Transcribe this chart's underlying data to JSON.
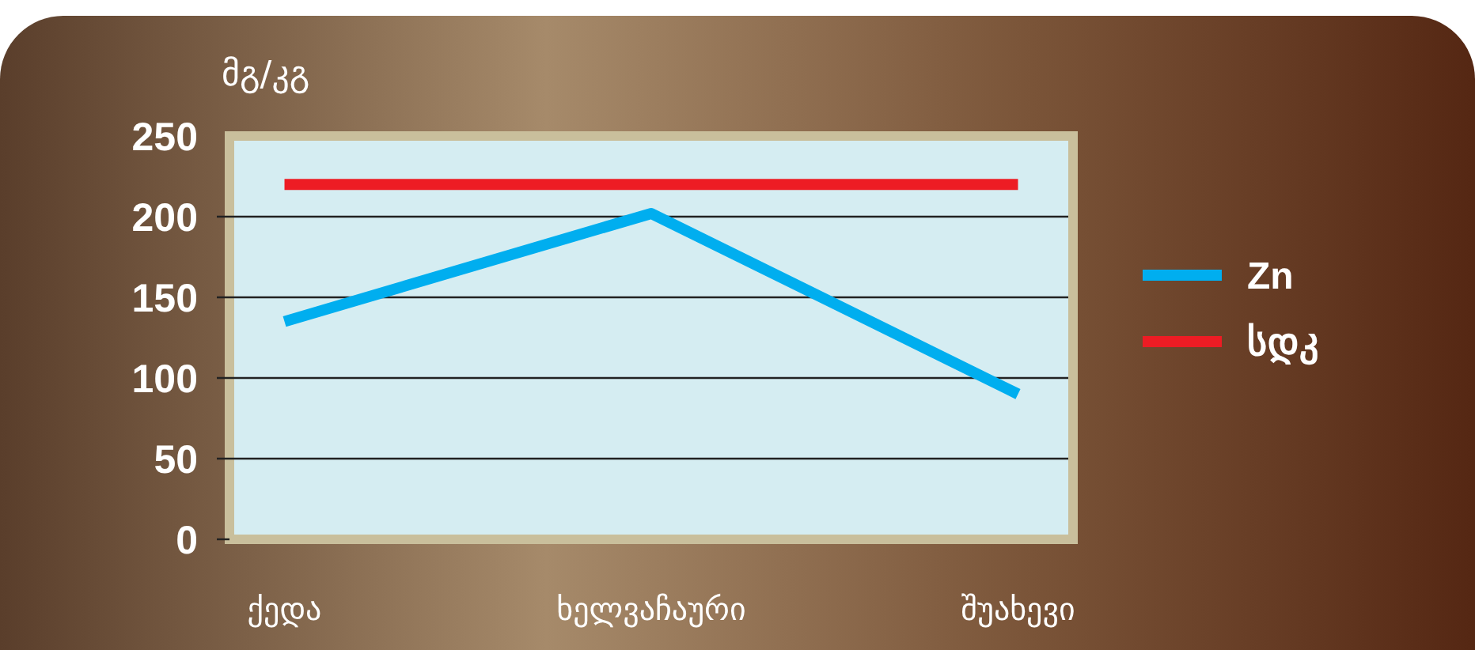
{
  "chart_data": {
    "type": "line",
    "ylabel": "მგ/კგ",
    "categories": [
      "ქედა",
      "ხელვაჩაური",
      "შუახევი"
    ],
    "series": [
      {
        "name": "Zn",
        "color": "#00aeef",
        "values": [
          135,
          202,
          90
        ]
      },
      {
        "name": "სდკ",
        "color": "#ed1c24",
        "values": [
          220,
          220,
          220
        ]
      }
    ],
    "ylim": [
      0,
      250
    ],
    "yticks": [
      0,
      50,
      100,
      150,
      200,
      250
    ],
    "grid": "y",
    "legend": "right",
    "line_style": "solid"
  }
}
